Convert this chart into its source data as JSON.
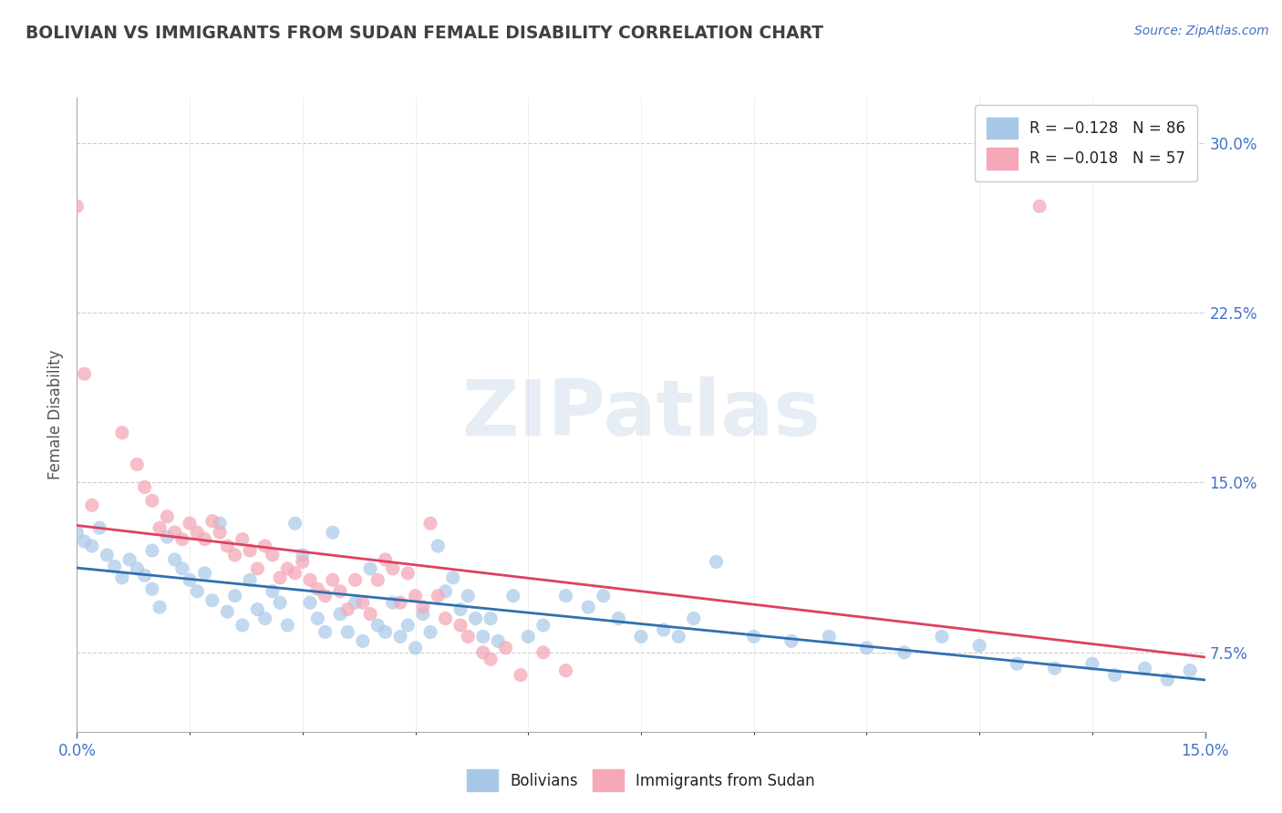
{
  "title": "BOLIVIAN VS IMMIGRANTS FROM SUDAN FEMALE DISABILITY CORRELATION CHART",
  "source": "Source: ZipAtlas.com",
  "ylabel": "Female Disability",
  "xmin": 0.0,
  "xmax": 0.15,
  "ymin": 0.04,
  "ymax": 0.32,
  "bolivians_color": "#a8c8e8",
  "sudan_color": "#f4a8b8",
  "bolivian_line_color": "#3070b0",
  "sudan_line_color": "#e04060",
  "watermark": "ZIPatlas",
  "bolivians_scatter": [
    [
      0.0,
      0.128
    ],
    [
      0.001,
      0.124
    ],
    [
      0.002,
      0.122
    ],
    [
      0.003,
      0.13
    ],
    [
      0.004,
      0.118
    ],
    [
      0.005,
      0.113
    ],
    [
      0.006,
      0.108
    ],
    [
      0.007,
      0.116
    ],
    [
      0.008,
      0.112
    ],
    [
      0.009,
      0.109
    ],
    [
      0.01,
      0.103
    ],
    [
      0.01,
      0.12
    ],
    [
      0.011,
      0.095
    ],
    [
      0.012,
      0.126
    ],
    [
      0.013,
      0.116
    ],
    [
      0.014,
      0.112
    ],
    [
      0.015,
      0.107
    ],
    [
      0.016,
      0.102
    ],
    [
      0.017,
      0.11
    ],
    [
      0.018,
      0.098
    ],
    [
      0.019,
      0.132
    ],
    [
      0.02,
      0.093
    ],
    [
      0.021,
      0.1
    ],
    [
      0.022,
      0.087
    ],
    [
      0.023,
      0.107
    ],
    [
      0.024,
      0.094
    ],
    [
      0.025,
      0.09
    ],
    [
      0.026,
      0.102
    ],
    [
      0.027,
      0.097
    ],
    [
      0.028,
      0.087
    ],
    [
      0.029,
      0.132
    ],
    [
      0.03,
      0.118
    ],
    [
      0.031,
      0.097
    ],
    [
      0.032,
      0.09
    ],
    [
      0.033,
      0.084
    ],
    [
      0.034,
      0.128
    ],
    [
      0.035,
      0.092
    ],
    [
      0.036,
      0.084
    ],
    [
      0.037,
      0.097
    ],
    [
      0.038,
      0.08
    ],
    [
      0.039,
      0.112
    ],
    [
      0.04,
      0.087
    ],
    [
      0.041,
      0.084
    ],
    [
      0.042,
      0.097
    ],
    [
      0.043,
      0.082
    ],
    [
      0.044,
      0.087
    ],
    [
      0.045,
      0.077
    ],
    [
      0.046,
      0.092
    ],
    [
      0.047,
      0.084
    ],
    [
      0.048,
      0.122
    ],
    [
      0.049,
      0.102
    ],
    [
      0.05,
      0.108
    ],
    [
      0.051,
      0.094
    ],
    [
      0.052,
      0.1
    ],
    [
      0.053,
      0.09
    ],
    [
      0.054,
      0.082
    ],
    [
      0.055,
      0.09
    ],
    [
      0.056,
      0.08
    ],
    [
      0.058,
      0.1
    ],
    [
      0.06,
      0.082
    ],
    [
      0.062,
      0.087
    ],
    [
      0.065,
      0.1
    ],
    [
      0.068,
      0.095
    ],
    [
      0.07,
      0.1
    ],
    [
      0.072,
      0.09
    ],
    [
      0.075,
      0.082
    ],
    [
      0.078,
      0.085
    ],
    [
      0.08,
      0.082
    ],
    [
      0.082,
      0.09
    ],
    [
      0.085,
      0.115
    ],
    [
      0.09,
      0.082
    ],
    [
      0.095,
      0.08
    ],
    [
      0.1,
      0.082
    ],
    [
      0.105,
      0.077
    ],
    [
      0.11,
      0.075
    ],
    [
      0.115,
      0.082
    ],
    [
      0.12,
      0.078
    ],
    [
      0.125,
      0.07
    ],
    [
      0.13,
      0.068
    ],
    [
      0.135,
      0.07
    ],
    [
      0.138,
      0.065
    ],
    [
      0.142,
      0.068
    ],
    [
      0.145,
      0.063
    ],
    [
      0.148,
      0.067
    ]
  ],
  "sudan_scatter": [
    [
      0.0,
      0.272
    ],
    [
      0.001,
      0.198
    ],
    [
      0.002,
      0.14
    ],
    [
      0.006,
      0.172
    ],
    [
      0.008,
      0.158
    ],
    [
      0.009,
      0.148
    ],
    [
      0.01,
      0.142
    ],
    [
      0.011,
      0.13
    ],
    [
      0.012,
      0.135
    ],
    [
      0.013,
      0.128
    ],
    [
      0.014,
      0.125
    ],
    [
      0.015,
      0.132
    ],
    [
      0.016,
      0.128
    ],
    [
      0.017,
      0.125
    ],
    [
      0.018,
      0.133
    ],
    [
      0.019,
      0.128
    ],
    [
      0.02,
      0.122
    ],
    [
      0.021,
      0.118
    ],
    [
      0.022,
      0.125
    ],
    [
      0.023,
      0.12
    ],
    [
      0.024,
      0.112
    ],
    [
      0.025,
      0.122
    ],
    [
      0.026,
      0.118
    ],
    [
      0.027,
      0.108
    ],
    [
      0.028,
      0.112
    ],
    [
      0.029,
      0.11
    ],
    [
      0.03,
      0.115
    ],
    [
      0.031,
      0.107
    ],
    [
      0.032,
      0.103
    ],
    [
      0.033,
      0.1
    ],
    [
      0.034,
      0.107
    ],
    [
      0.035,
      0.102
    ],
    [
      0.036,
      0.094
    ],
    [
      0.037,
      0.107
    ],
    [
      0.038,
      0.097
    ],
    [
      0.039,
      0.092
    ],
    [
      0.04,
      0.107
    ],
    [
      0.041,
      0.116
    ],
    [
      0.042,
      0.112
    ],
    [
      0.043,
      0.097
    ],
    [
      0.044,
      0.11
    ],
    [
      0.045,
      0.1
    ],
    [
      0.046,
      0.095
    ],
    [
      0.047,
      0.132
    ],
    [
      0.048,
      0.1
    ],
    [
      0.049,
      0.09
    ],
    [
      0.051,
      0.087
    ],
    [
      0.052,
      0.082
    ],
    [
      0.054,
      0.075
    ],
    [
      0.055,
      0.072
    ],
    [
      0.057,
      0.077
    ],
    [
      0.059,
      0.065
    ],
    [
      0.062,
      0.075
    ],
    [
      0.065,
      0.067
    ],
    [
      0.128,
      0.272
    ]
  ]
}
